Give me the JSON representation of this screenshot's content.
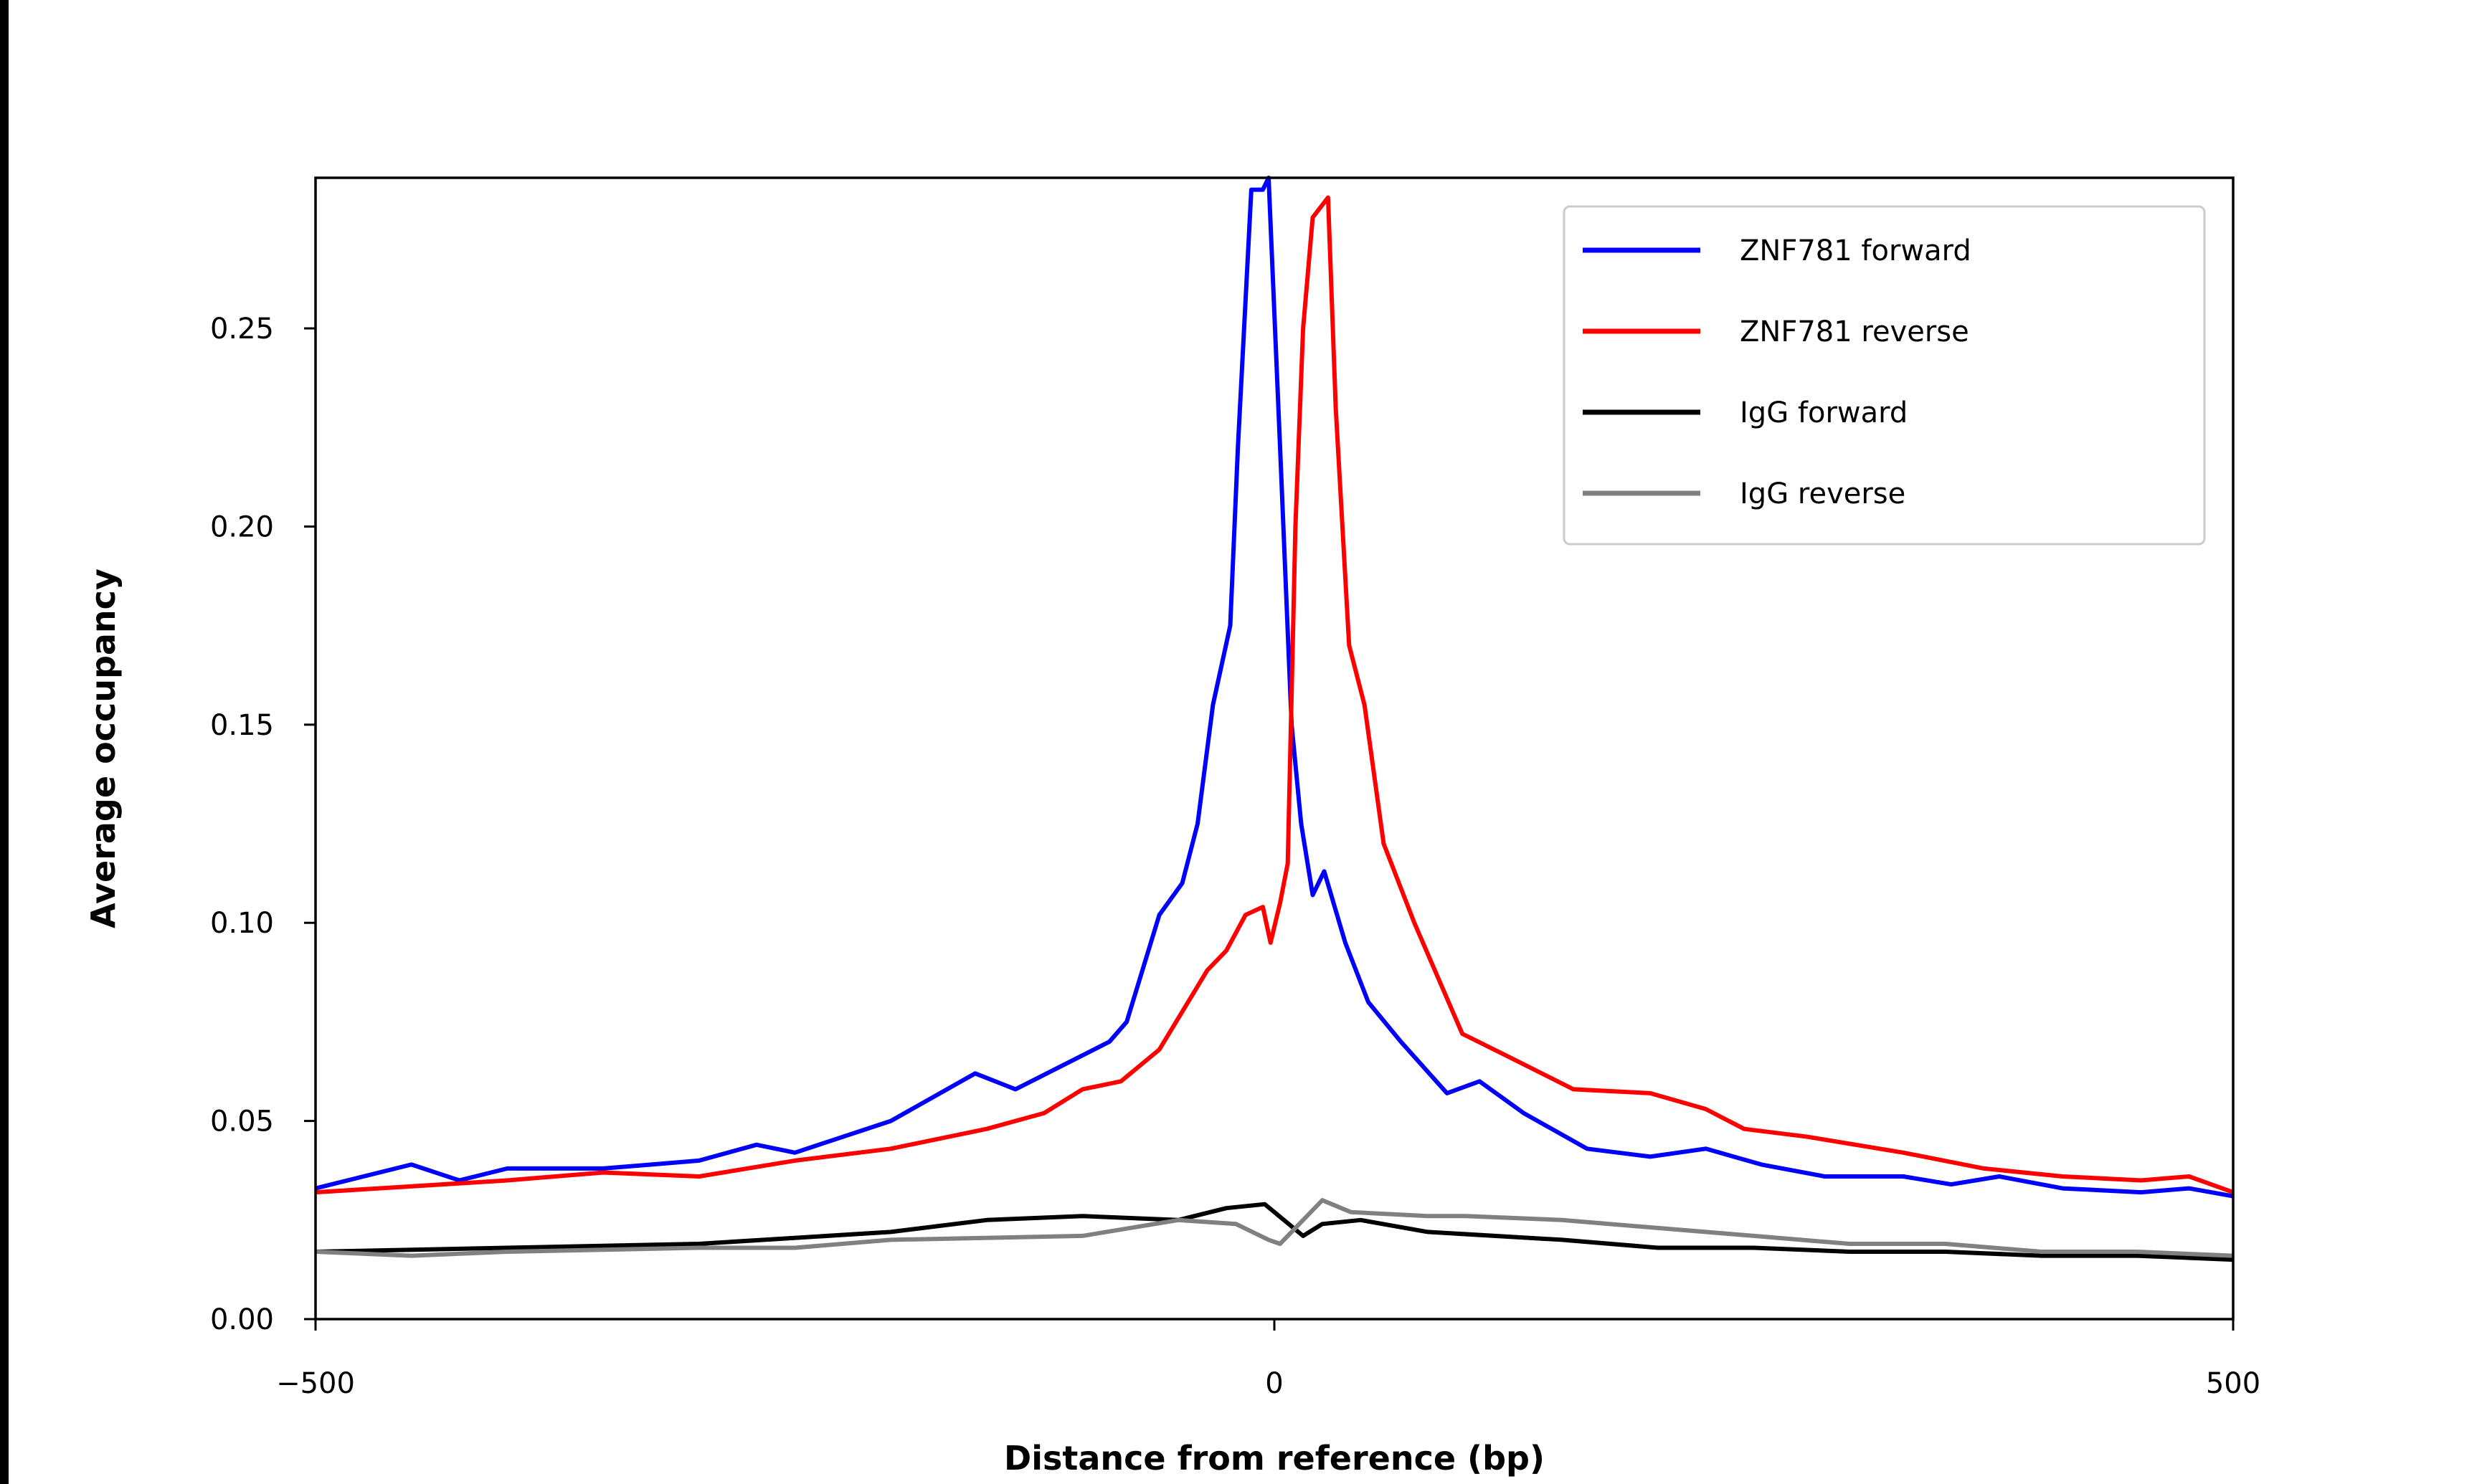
{
  "chart_data": {
    "type": "line",
    "title": "",
    "xlabel": "Distance from reference (bp)",
    "ylabel": "Average occupancy",
    "xlim": [
      -500,
      500
    ],
    "ylim": [
      0,
      0.288
    ],
    "x_ticks": [
      -500,
      0,
      500
    ],
    "x_tick_labels": [
      "−500",
      "0",
      "500"
    ],
    "y_ticks": [
      0,
      0.05,
      0.1,
      0.15,
      0.2,
      0.25
    ],
    "y_tick_labels": [
      "0.00",
      "0.05",
      "0.10",
      "0.15",
      "0.20",
      "0.25"
    ],
    "grid": false,
    "legend_placement": "top-right",
    "series": [
      {
        "name": "ZNF781 forward",
        "color": "#0000ff",
        "x": [
          -500,
          -450,
          -425,
          -400,
          -350,
          -300,
          -270,
          -250,
          -200,
          -156,
          -135,
          -86,
          -77,
          -60,
          -48,
          -40,
          -32,
          -23,
          -19,
          -12,
          -6,
          -3,
          3,
          9,
          14,
          20,
          26,
          37,
          49,
          66,
          90,
          107,
          130,
          163,
          196,
          225,
          254,
          287,
          328,
          353,
          378,
          411,
          452,
          477,
          500
        ],
        "y": [
          0.033,
          0.039,
          0.035,
          0.038,
          0.038,
          0.04,
          0.044,
          0.042,
          0.05,
          0.062,
          0.058,
          0.07,
          0.075,
          0.102,
          0.11,
          0.125,
          0.155,
          0.175,
          0.22,
          0.285,
          0.285,
          0.288,
          0.22,
          0.15,
          0.125,
          0.107,
          0.113,
          0.095,
          0.08,
          0.07,
          0.057,
          0.06,
          0.052,
          0.043,
          0.041,
          0.043,
          0.039,
          0.036,
          0.036,
          0.034,
          0.036,
          0.033,
          0.032,
          0.033,
          0.031
        ]
      },
      {
        "name": "ZNF781 reverse",
        "color": "#ff0000",
        "x": [
          -500,
          -400,
          -350,
          -300,
          -250,
          -200,
          -150,
          -120,
          -100,
          -80,
          -60,
          -45,
          -35,
          -25,
          -15,
          -6,
          -2,
          3,
          7,
          11,
          15,
          20,
          28,
          32,
          39,
          47,
          57,
          73,
          98,
          123,
          156,
          196,
          225,
          245,
          278,
          328,
          370,
          411,
          452,
          477,
          500
        ],
        "y": [
          0.032,
          0.035,
          0.037,
          0.036,
          0.04,
          0.043,
          0.048,
          0.052,
          0.058,
          0.06,
          0.068,
          0.08,
          0.088,
          0.093,
          0.102,
          0.104,
          0.095,
          0.105,
          0.115,
          0.2,
          0.25,
          0.278,
          0.283,
          0.23,
          0.17,
          0.155,
          0.12,
          0.1,
          0.072,
          0.066,
          0.058,
          0.057,
          0.053,
          0.048,
          0.046,
          0.042,
          0.038,
          0.036,
          0.035,
          0.036,
          0.032
        ]
      },
      {
        "name": "IgG forward",
        "color": "#000000",
        "x": [
          -500,
          -400,
          -300,
          -200,
          -150,
          -100,
          -50,
          -25,
          -5,
          5,
          15,
          25,
          45,
          80,
          150,
          200,
          250,
          300,
          350,
          400,
          450,
          500
        ],
        "y": [
          0.017,
          0.018,
          0.019,
          0.022,
          0.025,
          0.026,
          0.025,
          0.028,
          0.029,
          0.025,
          0.021,
          0.024,
          0.025,
          0.022,
          0.02,
          0.018,
          0.018,
          0.017,
          0.017,
          0.016,
          0.016,
          0.015
        ]
      },
      {
        "name": "IgG reverse",
        "color": "#808080",
        "x": [
          -500,
          -450,
          -400,
          -300,
          -250,
          -200,
          -100,
          -50,
          -20,
          -3,
          3,
          15,
          25,
          40,
          80,
          100,
          150,
          200,
          250,
          300,
          350,
          400,
          450,
          500
        ],
        "y": [
          0.017,
          0.016,
          0.017,
          0.018,
          0.018,
          0.02,
          0.021,
          0.025,
          0.024,
          0.02,
          0.019,
          0.025,
          0.03,
          0.027,
          0.026,
          0.026,
          0.025,
          0.023,
          0.021,
          0.019,
          0.019,
          0.017,
          0.017,
          0.016
        ]
      }
    ]
  }
}
